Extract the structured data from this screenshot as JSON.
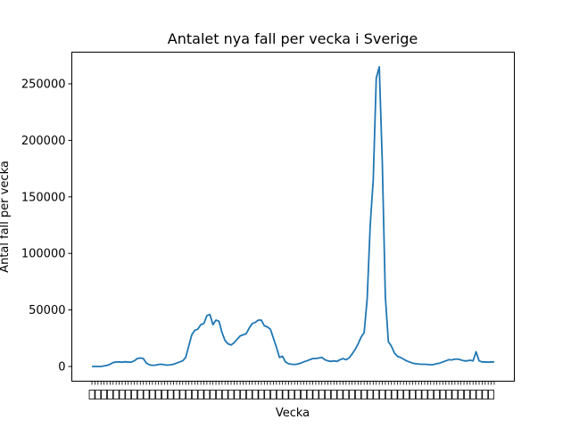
{
  "chart_data": {
    "type": "line",
    "title": "Antalet nya fall per vecka i Sverige",
    "xlabel": "Vecka",
    "ylabel": "Antal fall per vecka",
    "ylim": [
      -13000,
      278000
    ],
    "yticks": [
      0,
      50000,
      100000,
      150000,
      200000,
      250000
    ],
    "ytick_labels": [
      "0",
      "50000",
      "100000",
      "150000",
      "200000",
      "250000"
    ],
    "grid": false,
    "legend": "none",
    "line_color": "#1f77b4",
    "x": [
      0,
      1,
      2,
      3,
      4,
      5,
      6,
      7,
      8,
      9,
      10,
      11,
      12,
      13,
      14,
      15,
      16,
      17,
      18,
      19,
      20,
      21,
      22,
      23,
      24,
      25,
      26,
      27,
      28,
      29,
      30,
      31,
      32,
      33,
      34,
      35,
      36,
      37,
      38,
      39,
      40,
      41,
      42,
      43,
      44,
      45,
      46,
      47,
      48,
      49,
      50,
      51,
      52,
      53,
      54,
      55,
      56,
      57,
      58,
      59,
      60,
      61,
      62,
      63,
      64,
      65,
      66,
      67,
      68,
      69,
      70,
      71,
      72,
      73,
      74,
      75,
      76,
      77,
      78,
      79,
      80,
      81,
      82,
      83,
      84,
      85,
      86,
      87,
      88,
      89,
      90,
      91,
      92,
      93,
      94,
      95,
      96,
      97,
      98,
      99,
      100,
      101,
      102,
      103,
      104,
      105,
      106,
      107,
      108,
      109,
      110,
      111,
      112,
      113,
      114,
      115,
      116,
      117,
      118,
      119,
      120,
      121,
      122,
      123,
      124,
      125,
      126,
      127,
      128,
      129,
      130,
      131,
      132,
      133
    ],
    "series": [
      {
        "name": "",
        "values": [
          0,
          0,
          0,
          0,
          500,
          1000,
          2000,
          3500,
          4000,
          4000,
          3800,
          4200,
          3800,
          3900,
          5000,
          7000,
          7500,
          7000,
          3000,
          1500,
          1000,
          1200,
          1800,
          2000,
          1500,
          1200,
          1500,
          2000,
          3000,
          4000,
          5000,
          8000,
          18000,
          28000,
          32000,
          33000,
          37000,
          38000,
          45000,
          46000,
          37000,
          41000,
          40000,
          30000,
          23000,
          20000,
          19000,
          21000,
          24000,
          27000,
          28000,
          29000,
          34000,
          38000,
          39000,
          41000,
          41000,
          36000,
          35000,
          33000,
          25000,
          17000,
          8000,
          9000,
          4000,
          2500,
          2000,
          1800,
          2200,
          3000,
          4000,
          5000,
          6000,
          7000,
          7000,
          7500,
          8000,
          6000,
          5000,
          4500,
          5000,
          4500,
          6000,
          7000,
          6000,
          7500,
          11000,
          15000,
          20000,
          26000,
          30000,
          60000,
          125000,
          165000,
          255000,
          265000,
          180000,
          62000,
          22000,
          18000,
          12000,
          9000,
          8000,
          6500,
          5000,
          4000,
          3000,
          2500,
          2200,
          2000,
          2000,
          1800,
          1500,
          1800,
          2500,
          3000,
          4000,
          5000,
          6000,
          5800,
          6500,
          6500,
          5800,
          5000,
          5000,
          5500,
          5000,
          13000,
          5000,
          4000,
          4000,
          3800,
          4000,
          4000
        ],
        "color": "#1f77b4"
      }
    ],
    "xtick_labels_note": ""
  }
}
